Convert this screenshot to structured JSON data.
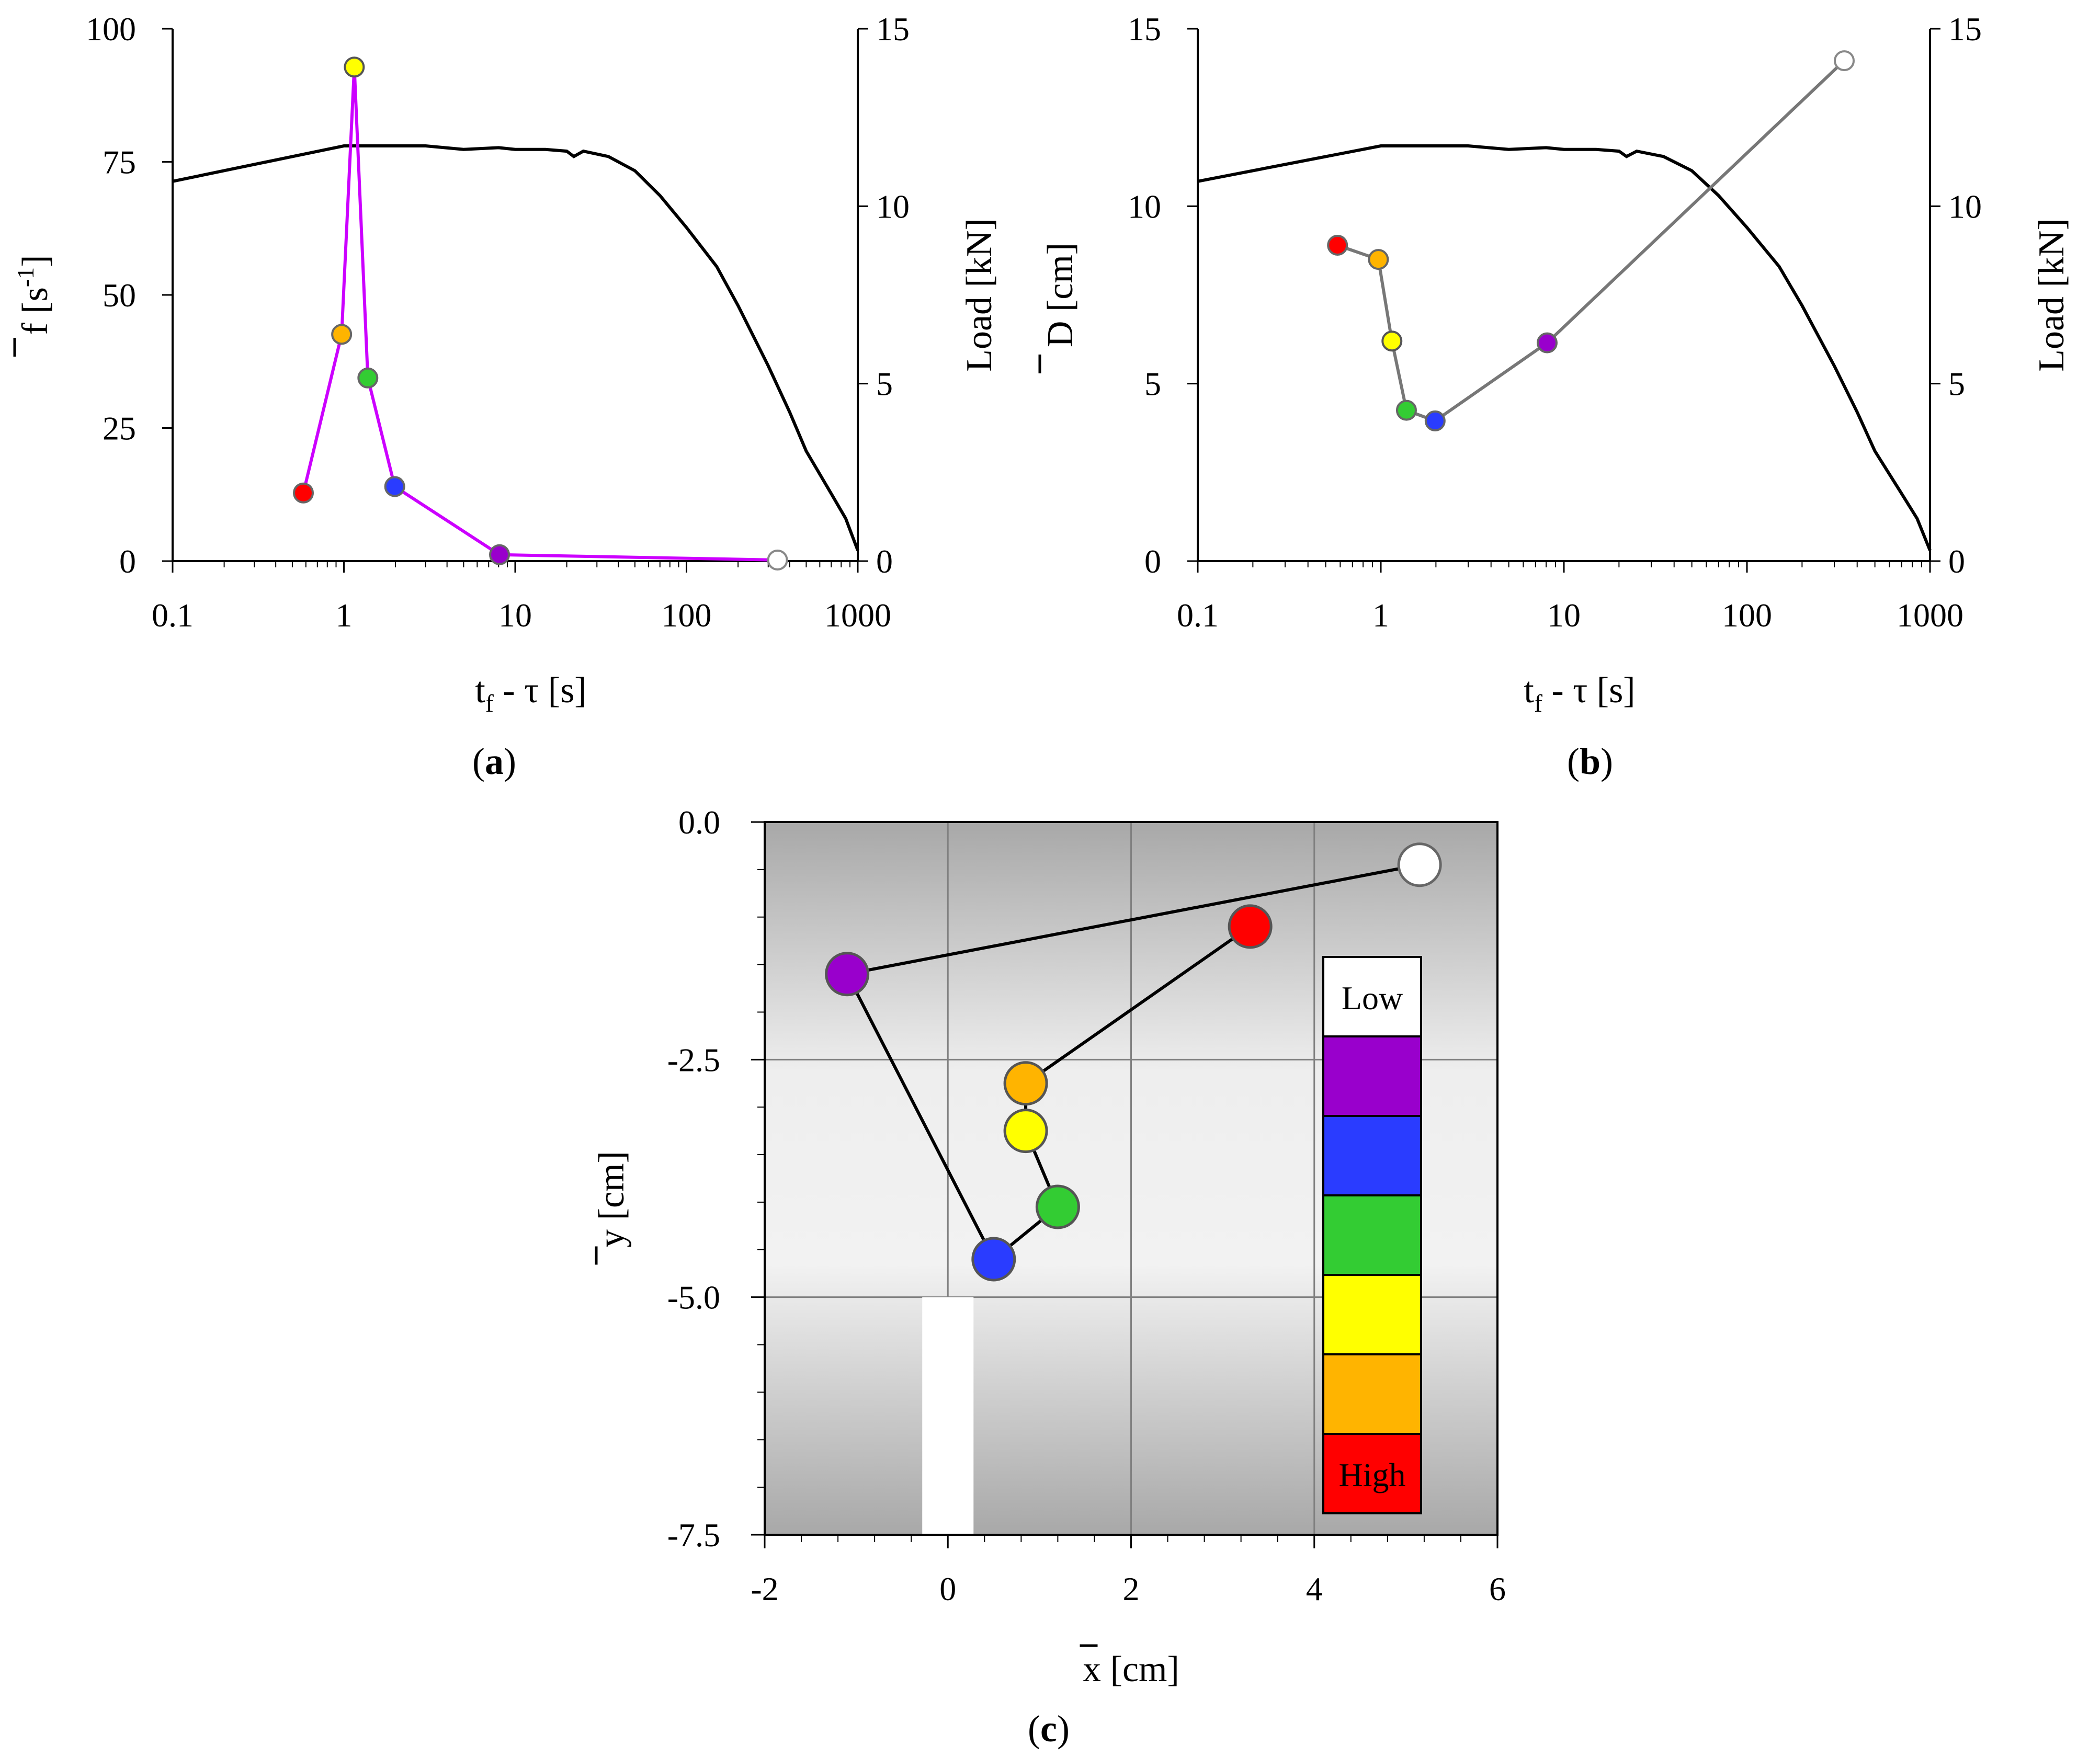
{
  "figure_caption_labels": {
    "a": "a",
    "b": "b",
    "c": "c"
  },
  "chart_data": [
    {
      "panel": "a",
      "type": "line",
      "xscale": "log",
      "xlabel_main": "t",
      "xlabel_sub": "f",
      "xlabel_rest": " - τ [s]",
      "ylabel_left": "f [s",
      "ylabel_left_sup": "-1",
      "ylabel_left_end": "]",
      "ylabel_right": "Load [kN]",
      "xlim": [
        0.1,
        1000
      ],
      "ylim_left": [
        0,
        100
      ],
      "ylim_right": [
        0,
        15
      ],
      "xticks": [
        "0.1",
        "1",
        "10",
        "100",
        "1000"
      ],
      "xtick_values": [
        0.1,
        1,
        10,
        100,
        1000
      ],
      "yticks_left": [
        "0",
        "25",
        "50",
        "75",
        "100"
      ],
      "ytick_values_left": [
        0,
        25,
        50,
        75,
        100
      ],
      "yticks_right": [
        "0",
        "5",
        "10",
        "15"
      ],
      "ytick_values_right": [
        0,
        5,
        10,
        15
      ],
      "line_color": "#cc00ff",
      "series": [
        {
          "name": "red",
          "x": 0.58,
          "y": 12.8,
          "color": "#ff0000"
        },
        {
          "name": "orange",
          "x": 0.97,
          "y": 42.6,
          "color": "#ffb400"
        },
        {
          "name": "yellow",
          "x": 1.15,
          "y": 92.8,
          "color": "#ffff00"
        },
        {
          "name": "green",
          "x": 1.38,
          "y": 34.4,
          "color": "#33cc33"
        },
        {
          "name": "blue",
          "x": 1.98,
          "y": 14.0,
          "color": "#2a3cff"
        },
        {
          "name": "purple",
          "x": 8.1,
          "y": 1.2,
          "color": "#9900cc"
        },
        {
          "name": "white",
          "x": 340,
          "y": 0.2,
          "color": "#ffffff"
        }
      ],
      "load": {
        "x": [
          0.1,
          1,
          1.5,
          3,
          5,
          8,
          10,
          15,
          20,
          22,
          25,
          35,
          50,
          70,
          100,
          150,
          200,
          300,
          400,
          500,
          700,
          850,
          1000
        ],
        "y": [
          10.7,
          11.7,
          11.7,
          11.7,
          11.6,
          11.65,
          11.6,
          11.6,
          11.55,
          11.4,
          11.55,
          11.4,
          11.0,
          10.3,
          9.4,
          8.3,
          7.2,
          5.5,
          4.2,
          3.1,
          1.9,
          1.2,
          0.3
        ]
      }
    },
    {
      "panel": "b",
      "type": "line",
      "xscale": "log",
      "xlabel_main": "t",
      "xlabel_sub": "f",
      "xlabel_rest": " - τ [s]",
      "ylabel_left": "D [cm]",
      "ylabel_right": "Load [kN]",
      "xlim": [
        0.1,
        1000
      ],
      "ylim_left": [
        0,
        15
      ],
      "ylim_right": [
        0,
        15
      ],
      "xticks": [
        "0.1",
        "1",
        "10",
        "100",
        "1000"
      ],
      "xtick_values": [
        0.1,
        1,
        10,
        100,
        1000
      ],
      "yticks_left": [
        "0",
        "5",
        "10",
        "15"
      ],
      "ytick_values_left": [
        0,
        5,
        10,
        15
      ],
      "yticks_right": [
        "0",
        "5",
        "10",
        "15"
      ],
      "ytick_values_right": [
        0,
        5,
        10,
        15
      ],
      "line_color": "#777777",
      "series": [
        {
          "name": "red",
          "x": 0.58,
          "y": 8.9,
          "color": "#ff0000"
        },
        {
          "name": "orange",
          "x": 0.97,
          "y": 8.5,
          "color": "#ffb400"
        },
        {
          "name": "yellow",
          "x": 1.15,
          "y": 6.2,
          "color": "#ffff00"
        },
        {
          "name": "green",
          "x": 1.38,
          "y": 4.25,
          "color": "#33cc33"
        },
        {
          "name": "blue",
          "x": 1.98,
          "y": 3.95,
          "color": "#2a3cff"
        },
        {
          "name": "purple",
          "x": 8.1,
          "y": 6.15,
          "color": "#9900cc"
        },
        {
          "name": "white",
          "x": 340,
          "y": 14.1,
          "color": "#ffffff"
        }
      ],
      "load": {
        "x": [
          0.1,
          1,
          1.5,
          3,
          5,
          8,
          10,
          15,
          20,
          22,
          25,
          35,
          50,
          70,
          100,
          150,
          200,
          300,
          400,
          500,
          700,
          850,
          1000
        ],
        "y": [
          10.7,
          11.7,
          11.7,
          11.7,
          11.6,
          11.65,
          11.6,
          11.6,
          11.55,
          11.4,
          11.55,
          11.4,
          11.0,
          10.3,
          9.4,
          8.3,
          7.2,
          5.5,
          4.2,
          3.1,
          1.9,
          1.2,
          0.3
        ]
      }
    },
    {
      "panel": "c",
      "type": "scatter",
      "xlabel": "x [cm]",
      "ylabel": "y [cm]",
      "xlim": [
        -2,
        6
      ],
      "ylim": [
        -7.5,
        0
      ],
      "xticks": [
        "-2",
        "0",
        "2",
        "4",
        "6"
      ],
      "xtick_values": [
        -2,
        0,
        2,
        4,
        6
      ],
      "yticks": [
        "0.0",
        "-2.5",
        "-5.0",
        "-7.5"
      ],
      "ytick_values": [
        0,
        -2.5,
        -5.0,
        -7.5
      ],
      "grid": true,
      "line_color": "#000000",
      "series": [
        {
          "name": "red",
          "x": 3.3,
          "y": -1.1,
          "color": "#ff0000"
        },
        {
          "name": "orange",
          "x": 0.85,
          "y": -2.75,
          "color": "#ffb400"
        },
        {
          "name": "yellow",
          "x": 0.85,
          "y": -3.25,
          "color": "#ffff00"
        },
        {
          "name": "green",
          "x": 1.2,
          "y": -4.05,
          "color": "#33cc33"
        },
        {
          "name": "blue",
          "x": 0.5,
          "y": -4.6,
          "color": "#2a3cff"
        },
        {
          "name": "purple",
          "x": -1.1,
          "y": -1.6,
          "color": "#9900cc"
        },
        {
          "name": "white",
          "x": 5.15,
          "y": -0.45,
          "color": "#ffffff"
        }
      ],
      "notch": {
        "x0": -0.28,
        "x1": 0.28,
        "y_top": -5.0
      },
      "legend": {
        "placement": "right",
        "top_label": "Low",
        "bottom_label": "High",
        "colors": [
          "#ffffff",
          "#9900cc",
          "#2a3cff",
          "#33cc33",
          "#ffff00",
          "#ffb400",
          "#ff0000"
        ]
      }
    }
  ]
}
